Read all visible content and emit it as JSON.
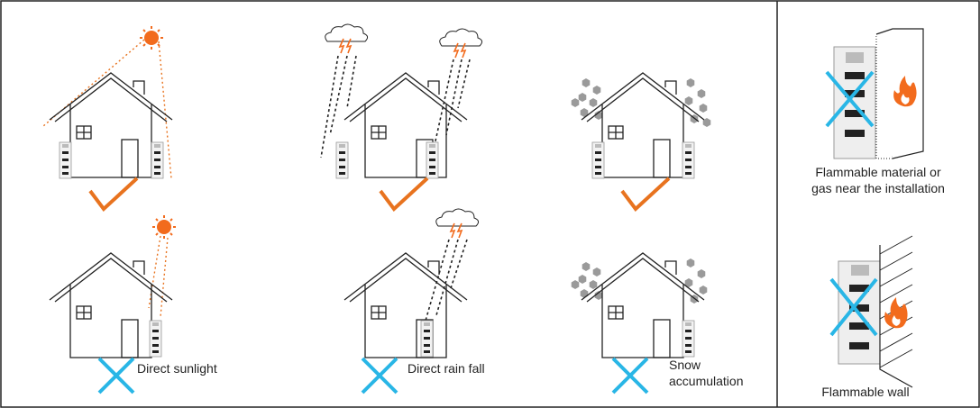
{
  "captions": {
    "sunlight": "Direct sunlight",
    "rain": "Direct rain fall",
    "snow": [
      "Snow",
      "accumulation"
    ],
    "flammable_material": [
      "Flammable material or",
      "gas near the installation"
    ],
    "flammable_wall": "Flammable wall"
  }
}
